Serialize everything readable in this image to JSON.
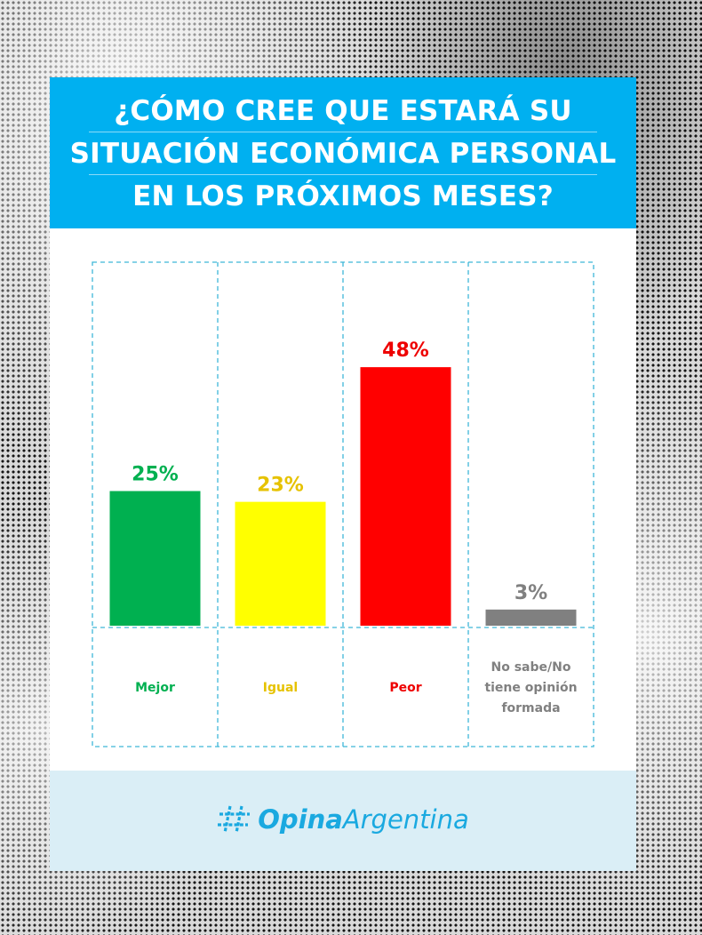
{
  "chart_data": {
    "type": "bar",
    "title_lines": [
      "¿CÓMO CREE QUE ESTARÁ SU",
      "SITUACIÓN ECONÓMICA PERSONAL",
      "EN LOS PRÓXIMOS MESES?"
    ],
    "categories": [
      "Mejor",
      "Igual",
      "Peor",
      "No sabe/No tiene opinión formada"
    ],
    "category_label_lines": [
      [
        "Mejor"
      ],
      [
        "Igual"
      ],
      [
        "Peor"
      ],
      [
        "No sabe/No",
        "tiene opinión",
        "formada"
      ]
    ],
    "values": [
      25,
      23,
      48,
      3
    ],
    "value_labels": [
      "25%",
      "23%",
      "48%",
      "3%"
    ],
    "colors": [
      "#00b050",
      "#ffff00",
      "#ff0000",
      "#808080"
    ],
    "label_colors": [
      "#00b050",
      "#e6c200",
      "#ee0000",
      "#808080"
    ],
    "ylim": [
      0,
      50
    ],
    "unit": "%",
    "grid_color": "#3fb6d8"
  },
  "brand": {
    "bold": "Opina",
    "light": "Argentina",
    "icon": "hashtag-icon",
    "color": "#1aa9e0"
  }
}
